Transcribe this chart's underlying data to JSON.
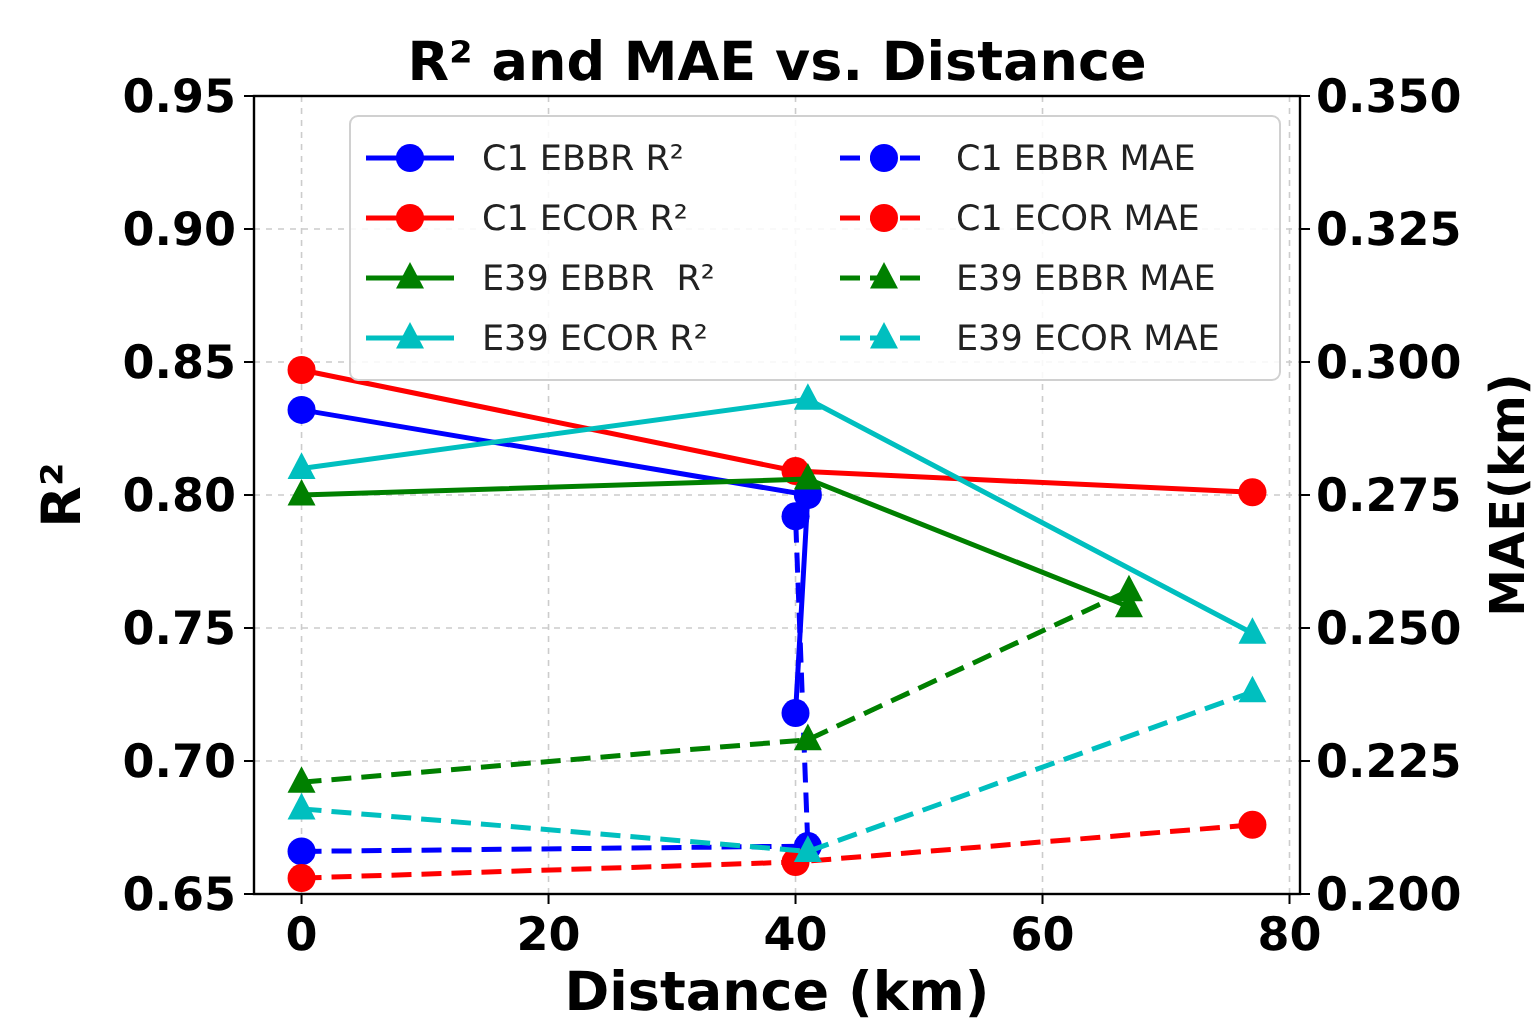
{
  "chart_data": {
    "type": "line",
    "title": "R² and MAE vs. Distance",
    "xlabel": "Distance (km)",
    "ylabel": "R²",
    "y2label": "MAE(km)",
    "xlim": [
      -3.85,
      80.85
    ],
    "xticks": [
      0,
      20,
      40,
      60,
      80
    ],
    "ylim": [
      0.65,
      0.95
    ],
    "yticks": [
      {
        "value": 0.65,
        "label": "0.65"
      },
      {
        "value": 0.7,
        "label": "0.70"
      },
      {
        "value": 0.75,
        "label": "0.75"
      },
      {
        "value": 0.8,
        "label": "0.80"
      },
      {
        "value": 0.85,
        "label": "0.85"
      },
      {
        "value": 0.9,
        "label": "0.90"
      },
      {
        "value": 0.95,
        "label": "0.95"
      }
    ],
    "y2lim": [
      0.2,
      0.35
    ],
    "y2ticks": [
      {
        "value": 0.2,
        "label": "0.200"
      },
      {
        "value": 0.225,
        "label": "0.225"
      },
      {
        "value": 0.25,
        "label": "0.250"
      },
      {
        "value": 0.275,
        "label": "0.275"
      },
      {
        "value": 0.3,
        "label": "0.300"
      },
      {
        "value": 0.325,
        "label": "0.325"
      },
      {
        "value": 0.35,
        "label": "0.350"
      }
    ],
    "grid": true,
    "legend": "top",
    "series": [
      {
        "name": "C1 EBBR R²",
        "color": "#0000ff",
        "marker": "circle",
        "line_style": "solid",
        "x": [
          0,
          41,
          40
        ],
        "values": [
          0.832,
          0.8,
          0.718
        ]
      },
      {
        "name": "C1 ECOR R²",
        "color": "#ff0000",
        "marker": "circle",
        "line_style": "solid",
        "x": [
          0,
          40,
          77
        ],
        "values": [
          0.847,
          0.809,
          0.801
        ]
      },
      {
        "name": "E39 EBBR  R²",
        "color": "#008000",
        "marker": "triangle",
        "line_style": "solid",
        "x": [
          0,
          41,
          67
        ],
        "values": [
          0.8,
          0.806,
          0.758
        ]
      },
      {
        "name": "E39 ECOR R²",
        "color": "#00bfbf",
        "marker": "triangle",
        "line_style": "solid",
        "x": [
          0,
          41,
          77
        ],
        "values": [
          0.81,
          0.836,
          0.748
        ]
      },
      {
        "name": "C1 EBBR MAE",
        "color": "#0000ff",
        "marker": "circle",
        "line_style": "dashed",
        "axis": "y2",
        "x": [
          0,
          41,
          40
        ],
        "values": [
          0.208,
          0.209,
          0.271
        ]
      },
      {
        "name": "C1 ECOR MAE",
        "color": "#ff0000",
        "marker": "circle",
        "line_style": "dashed",
        "axis": "y2",
        "x": [
          0,
          40,
          77
        ],
        "values": [
          0.203,
          0.206,
          0.213
        ]
      },
      {
        "name": "E39 EBBR MAE",
        "color": "#008000",
        "marker": "triangle",
        "line_style": "dashed",
        "axis": "y2",
        "x": [
          0,
          41,
          67
        ],
        "values": [
          0.221,
          0.229,
          0.257
        ]
      },
      {
        "name": "E39 ECOR MAE",
        "color": "#00bfbf",
        "marker": "triangle",
        "line_style": "dashed",
        "axis": "y2",
        "x": [
          0,
          41,
          77
        ],
        "values": [
          0.216,
          0.208,
          0.238
        ]
      }
    ]
  }
}
